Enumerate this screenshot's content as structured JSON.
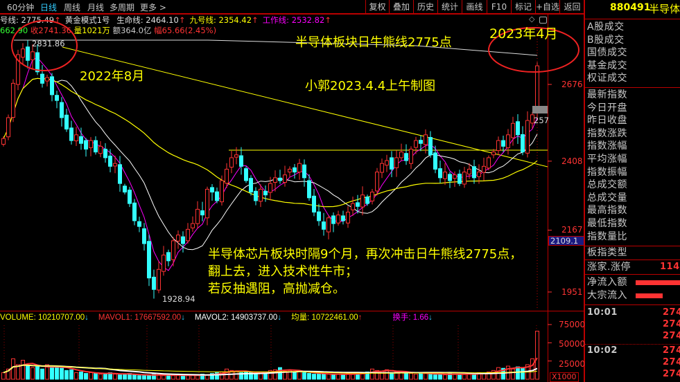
{
  "toolbar": {
    "period_tabs": [
      "60分钟",
      "日线",
      "周线",
      "月线",
      "多周期",
      "更多 >"
    ],
    "active_tab": "日线",
    "buttons": [
      "复权",
      "叠加",
      "历史",
      "统计",
      "画线",
      "F10",
      "标记",
      "+自选",
      "返回"
    ]
  },
  "indicator_line": {
    "items": [
      {
        "label": "号线:",
        "value": "2775.49",
        "color": "#e0e0e0"
      },
      {
        "label": "黄金模式1号",
        "value": "",
        "color": "#e0e0e0"
      },
      {
        "label": "生命线:",
        "value": "2464.10",
        "color": "#e0e0e0"
      },
      {
        "label": "九号线:",
        "value": "2354.42",
        "color": "#ffff00"
      },
      {
        "label": "工作线:",
        "value": "2532.82",
        "color": "#ff00ff"
      }
    ],
    "arrow": "↑"
  },
  "quote_line": {
    "open": "662.90",
    "close_label": "收",
    "close": "2741.36",
    "vol_label": "量",
    "vol": "1021万",
    "amount_label": "额",
    "amount": "364.0亿",
    "change_label": "幅",
    "change": "65.66(2.45%)"
  },
  "chart_data": {
    "type": "candlestick",
    "closes": [
      2487,
      2560,
      2680,
      2780,
      2800,
      2760,
      2790,
      2720,
      2680,
      2700,
      2640,
      2620,
      2560,
      2520,
      2480,
      2500,
      2470,
      2450,
      2480,
      2440,
      2460,
      2420,
      2390,
      2400,
      2330,
      2300,
      2260,
      2200,
      2180,
      2120,
      2000,
      1960,
      2030,
      2080,
      2060,
      2130,
      2150,
      2120,
      2170,
      2190,
      2240,
      2220,
      2310,
      2300,
      2270,
      2340,
      2380,
      2420,
      2430,
      2390,
      2340,
      2300,
      2270,
      2310,
      2290,
      2330,
      2350,
      2340,
      2360,
      2380,
      2370,
      2400,
      2350,
      2280,
      2230,
      2200,
      2170,
      2210,
      2190,
      2220,
      2200,
      2230,
      2260,
      2250,
      2290,
      2260,
      2300,
      2370,
      2400,
      2410,
      2380,
      2420,
      2440,
      2410,
      2450,
      2480,
      2470,
      2500,
      2430,
      2380,
      2350,
      2370,
      2340,
      2360,
      2330,
      2370,
      2380,
      2350,
      2370,
      2390,
      2420,
      2440,
      2480,
      2460,
      2500,
      2540,
      2500,
      2440,
      2550,
      2570,
      2741
    ],
    "volumes": [
      9000,
      14000,
      28000,
      20000,
      26000,
      18000,
      16000,
      17000,
      14000,
      20000,
      18000,
      16000,
      15000,
      12000,
      13000,
      9000,
      10000,
      8000,
      9000,
      8000,
      7000,
      8000,
      9000,
      7000,
      6000,
      7000,
      8000,
      6000,
      5000,
      5000,
      6000,
      7000,
      6000,
      5000,
      6000,
      5000,
      6000,
      5000,
      5000,
      6000,
      5000,
      7000,
      6000,
      8000,
      9000,
      10000,
      14000,
      12000,
      11000,
      9000,
      10000,
      9000,
      8000,
      9000,
      10000,
      12000,
      13000,
      16000,
      11000,
      12000,
      10000,
      11000,
      9000,
      8000,
      7000,
      7000,
      8000,
      7000,
      6000,
      7000,
      6000,
      8000,
      7000,
      9000,
      8000,
      10000,
      14000,
      12000,
      11000,
      13000,
      9000,
      10000,
      11000,
      9000,
      8000,
      7000,
      9000,
      8000,
      7000,
      6000,
      7000,
      6000,
      8000,
      7000,
      6000,
      7000,
      8000,
      7000,
      9000,
      8000,
      10000,
      12000,
      16000,
      15000,
      18000,
      14000,
      17000,
      15000,
      20000,
      28000,
      66000
    ],
    "price_ticks": [
      "2676",
      "2408",
      "2167",
      "1951"
    ],
    "price_tick_values": [
      2676,
      2408,
      2167,
      1951
    ],
    "high_label": "2831.86",
    "low_label": "1928.94",
    "current_price_box": "2109.1",
    "last_mark": "257",
    "levels": {
      "bull_bear_line": 2775.49,
      "horizontal_line": 2430
    },
    "volume_ticks": [
      "75000",
      "50000",
      "25000"
    ],
    "volume_unit": "X1000"
  },
  "volume_header": [
    {
      "text": "VOLUME: 10210707.00",
      "arrow": "↓",
      "color": "#ffff00",
      "arrow_color": "#3cf"
    },
    {
      "text": "MAVOL1: 17667592.00",
      "arrow": "↓",
      "color": "#f33",
      "arrow_color": "#3cf"
    },
    {
      "text": "MAVOL2: 14903737.00",
      "arrow": "↓",
      "color": "#ffffff",
      "arrow_color": "#3cf"
    },
    {
      "text": "均量: 10722461.00",
      "arrow": "↑",
      "color": "#ffff00",
      "arrow_color": "#f33"
    },
    {
      "text": "换手: 1.66",
      "arrow": "↓",
      "color": "#f0f",
      "arrow_color": "#3cf"
    }
  ],
  "annotations": {
    "title": "半导体板块日牛熊线2775点",
    "date_right": "2023年4月",
    "date_left": "2022年8月",
    "author": "小郭2023.4.4上午制图",
    "comment1": "半导体芯片板块时隔9个月，再次冲击日牛熊线2775点，",
    "comment2": "翻上去，进入技术性牛市；",
    "comment3": "若反抽遇阻，高抛减仓。"
  },
  "right_panel": {
    "code": "880491",
    "name": "半导体",
    "group1": [
      "A股成交",
      "B股成交",
      "国债成交",
      "基金成交",
      "权证成交"
    ],
    "group2": [
      "最新指数",
      "今日开盘",
      "昨日收盘",
      "指数涨跌",
      "指数涨幅",
      "平均涨幅",
      "指数振幅",
      "总成交额",
      "总成交量",
      "最高指数",
      "最低指数",
      "指数量比"
    ],
    "board_type": "板指类型",
    "rise_label": "涨家.涨停",
    "rise_value": "114/",
    "flow": [
      {
        "label": "净流入额",
        "bar": 1.0
      },
      {
        "label": "大宗流入",
        "bar": 0.6
      }
    ],
    "ticks": [
      {
        "time": "10:01",
        "values": [
          "274",
          "274",
          "274"
        ]
      },
      {
        "time": "10:02",
        "values": [
          "274",
          "274",
          "274"
        ]
      }
    ]
  },
  "colors": {
    "up": "#ff3333",
    "down": "#33ffff",
    "border": "#bb0000",
    "ma5": "#ff00ff",
    "ma10": "#ffffff",
    "ma60": "#ffff00"
  }
}
